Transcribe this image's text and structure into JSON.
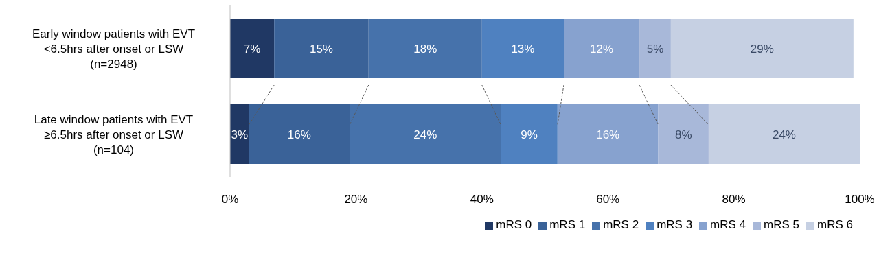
{
  "chart_data": {
    "type": "bar",
    "orientation": "horizontal",
    "stacked": true,
    "categories": [
      "Early window patients with EVT\n<6.5hrs after onset or LSW\n(n=2948)",
      "Late window patients with EVT\n≥6.5hrs after onset or LSW\n(n=104)"
    ],
    "series": [
      {
        "name": "mRS 0",
        "color": "#203864",
        "values": [
          7,
          3
        ],
        "value_labels": [
          "7%",
          "3%"
        ]
      },
      {
        "name": "mRS 1",
        "color": "#3a6298",
        "values": [
          15,
          16
        ],
        "value_labels": [
          "15%",
          "16%"
        ]
      },
      {
        "name": "mRS 2",
        "color": "#4672ab",
        "values": [
          18,
          24
        ],
        "value_labels": [
          "18%",
          "24%"
        ]
      },
      {
        "name": "mRS 3",
        "color": "#4f81c0",
        "values": [
          13,
          9
        ],
        "value_labels": [
          "13%",
          "9%"
        ]
      },
      {
        "name": "mRS 4",
        "color": "#87a2cf",
        "values": [
          12,
          16
        ],
        "value_labels": [
          "12%",
          "16%"
        ]
      },
      {
        "name": "mRS 5",
        "color": "#a8b8d9",
        "values": [
          5,
          8
        ],
        "value_labels": [
          "5%",
          "8%"
        ]
      },
      {
        "name": "mRS 6",
        "color": "#c6d0e3",
        "values": [
          29,
          24
        ],
        "value_labels": [
          "29%",
          "24%"
        ]
      }
    ],
    "xlim": [
      0,
      100
    ],
    "xticks": [
      {
        "value": 0,
        "label": "0%"
      },
      {
        "value": 20,
        "label": "20%"
      },
      {
        "value": 40,
        "label": "40%"
      },
      {
        "value": 60,
        "label": "60%"
      },
      {
        "value": 80,
        "label": "80%"
      },
      {
        "value": 100,
        "label": "100%"
      }
    ],
    "grid": false,
    "legend": "bottom"
  }
}
